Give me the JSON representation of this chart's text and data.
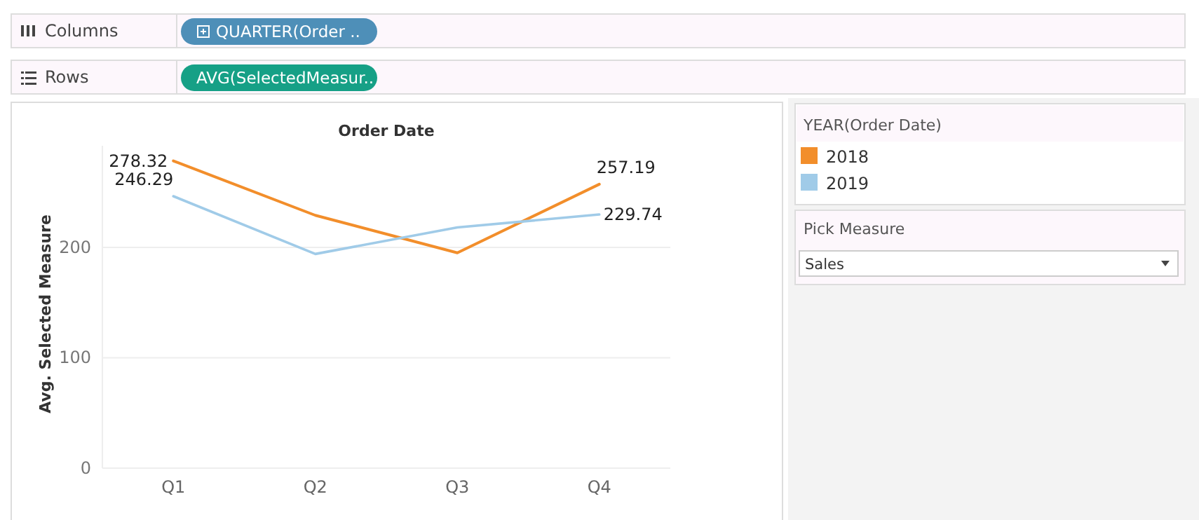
{
  "chart_data": {
    "type": "line",
    "title": "Order Date",
    "ylabel": "Avg. Selected Measure",
    "legend_title": "YEAR(Order Date)",
    "categories": [
      "Q1",
      "Q2",
      "Q3",
      "Q4"
    ],
    "series": [
      {
        "name": "2018",
        "color": "#f28e2b",
        "values": [
          278.32,
          229,
          195,
          257.19
        ],
        "value_labels": [
          "278.32",
          null,
          null,
          "257.19"
        ]
      },
      {
        "name": "2019",
        "color": "#a0cbe8",
        "values": [
          246.29,
          194,
          218,
          229.74
        ],
        "value_labels": [
          "246.29",
          null,
          null,
          "229.74"
        ]
      }
    ],
    "ylim": [
      0,
      292
    ],
    "yticks": [
      0,
      100,
      200
    ],
    "grid": "y",
    "legend": "right",
    "marker": "none",
    "line_style": "solid",
    "annotations": [
      "Columns",
      "QUARTER(Order ..",
      "Rows",
      "AVG(SelectedMeasur..",
      "Pick Measure",
      "Sales"
    ]
  }
}
